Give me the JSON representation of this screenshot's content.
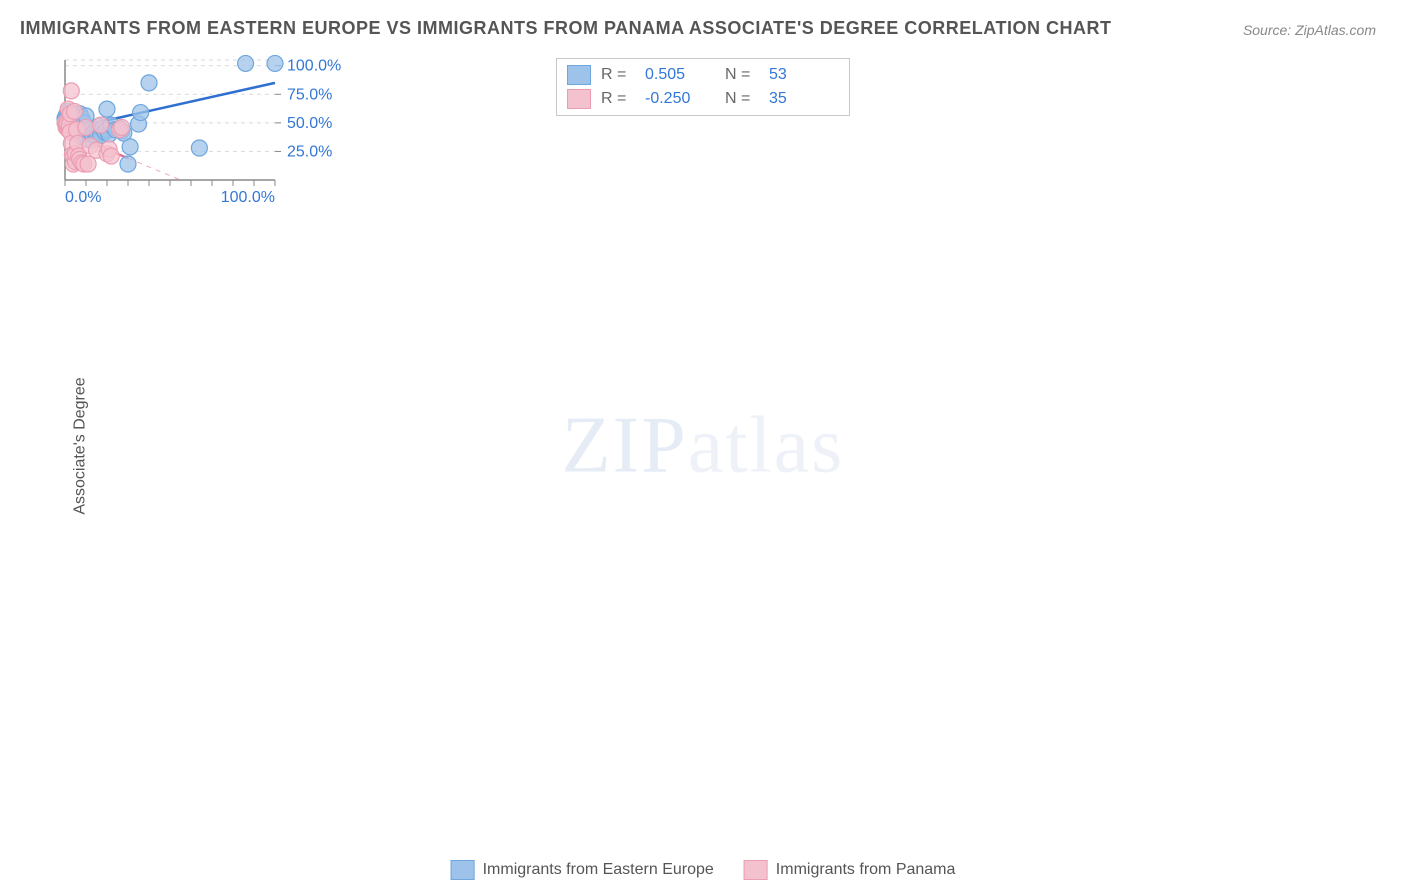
{
  "title": "IMMIGRANTS FROM EASTERN EUROPE VS IMMIGRANTS FROM PANAMA ASSOCIATE'S DEGREE CORRELATION CHART",
  "source": "Source: ZipAtlas.com",
  "ylabel": "Associate's Degree",
  "watermark": "ZIPatlas",
  "axis": {
    "xlim": [
      0,
      100
    ],
    "ylim": [
      0,
      105
    ],
    "xticks": [
      0,
      100
    ],
    "xtick_labels": [
      "0.0%",
      "100.0%"
    ],
    "yticks": [
      25,
      50,
      75,
      100
    ],
    "ytick_labels": [
      "25.0%",
      "50.0%",
      "75.0%",
      "100.0%"
    ],
    "grid_color": "#d9d9d9",
    "axis_color": "#888888",
    "background": "#ffffff",
    "label_color": "#3277d6",
    "title_color": "#555555",
    "title_fontsize": 18,
    "label_fontsize": 16
  },
  "series": [
    {
      "name": "Immigrants from Eastern Europe",
      "marker_fill": "#9dc3ea",
      "marker_stroke": "#6ea6de",
      "marker_radius": 8,
      "marker_opacity": 0.75,
      "line_color": "#2f6fd0",
      "line_width": 2.5,
      "r": 0.505,
      "n": 53,
      "trend": {
        "x1": 0,
        "y1": 44,
        "x2": 100,
        "y2": 85,
        "solid_until_x": 100
      },
      "points": [
        [
          0,
          54
        ],
        [
          0.5,
          56
        ],
        [
          1,
          50
        ],
        [
          1,
          58
        ],
        [
          1.5,
          52
        ],
        [
          1.5,
          60
        ],
        [
          2,
          55
        ],
        [
          2,
          57
        ],
        [
          2.5,
          48
        ],
        [
          3,
          46
        ],
        [
          3,
          54
        ],
        [
          3.5,
          59
        ],
        [
          4,
          56
        ],
        [
          4,
          44
        ],
        [
          5,
          57
        ],
        [
          5,
          42
        ],
        [
          5.5,
          53
        ],
        [
          6,
          55
        ],
        [
          6,
          40
        ],
        [
          6.5,
          45
        ],
        [
          7,
          58
        ],
        [
          7.5,
          38
        ],
        [
          8,
          54
        ],
        [
          8.5,
          41
        ],
        [
          9,
          50
        ],
        [
          10,
          56
        ],
        [
          10,
          36
        ],
        [
          11,
          44
        ],
        [
          12,
          35
        ],
        [
          13,
          40
        ],
        [
          14,
          42
        ],
        [
          15,
          38
        ],
        [
          15.5,
          41
        ],
        [
          16,
          47
        ],
        [
          17,
          39
        ],
        [
          18,
          45
        ],
        [
          19,
          42
        ],
        [
          20,
          44
        ],
        [
          20,
          62
        ],
        [
          21,
          40
        ],
        [
          22,
          48
        ],
        [
          24,
          44
        ],
        [
          26,
          45
        ],
        [
          27,
          43
        ],
        [
          28,
          41
        ],
        [
          30,
          14
        ],
        [
          31,
          29
        ],
        [
          35,
          49
        ],
        [
          36,
          59
        ],
        [
          40,
          85
        ],
        [
          64,
          28
        ],
        [
          86,
          102
        ],
        [
          100,
          102
        ]
      ]
    },
    {
      "name": "Immigrants from Panama",
      "marker_fill": "#f4c2cf",
      "marker_stroke": "#eb9eb2",
      "marker_radius": 8,
      "marker_opacity": 0.75,
      "line_color": "#e86f92",
      "line_width": 2.5,
      "r": -0.25,
      "n": 35,
      "trend": {
        "x1": 0,
        "y1": 42,
        "x2": 55,
        "y2": 0,
        "solid_until_x": 30
      },
      "points": [
        [
          0,
          50
        ],
        [
          0.5,
          48
        ],
        [
          0.5,
          46
        ],
        [
          1,
          47
        ],
        [
          1,
          49
        ],
        [
          1.5,
          44
        ],
        [
          1.5,
          62
        ],
        [
          2,
          44
        ],
        [
          2,
          48
        ],
        [
          2.5,
          42
        ],
        [
          2.5,
          58
        ],
        [
          3,
          78
        ],
        [
          3,
          32
        ],
        [
          3.5,
          22
        ],
        [
          4,
          20
        ],
        [
          4,
          14
        ],
        [
          4.5,
          60
        ],
        [
          5,
          16
        ],
        [
          5,
          23
        ],
        [
          5.5,
          44
        ],
        [
          6,
          32
        ],
        [
          6.5,
          21
        ],
        [
          7,
          18
        ],
        [
          8,
          15
        ],
        [
          9,
          14
        ],
        [
          10,
          46
        ],
        [
          11,
          14
        ],
        [
          12,
          30
        ],
        [
          15,
          26
        ],
        [
          17,
          48
        ],
        [
          20,
          23
        ],
        [
          21,
          27
        ],
        [
          22,
          21
        ],
        [
          26,
          44
        ],
        [
          27,
          46
        ]
      ]
    }
  ],
  "legend_top": {
    "r_label": "R =",
    "n_label": "N ="
  },
  "legend_bottom": {
    "items": [
      "Immigrants from Eastern Europe",
      "Immigrants from Panama"
    ]
  }
}
